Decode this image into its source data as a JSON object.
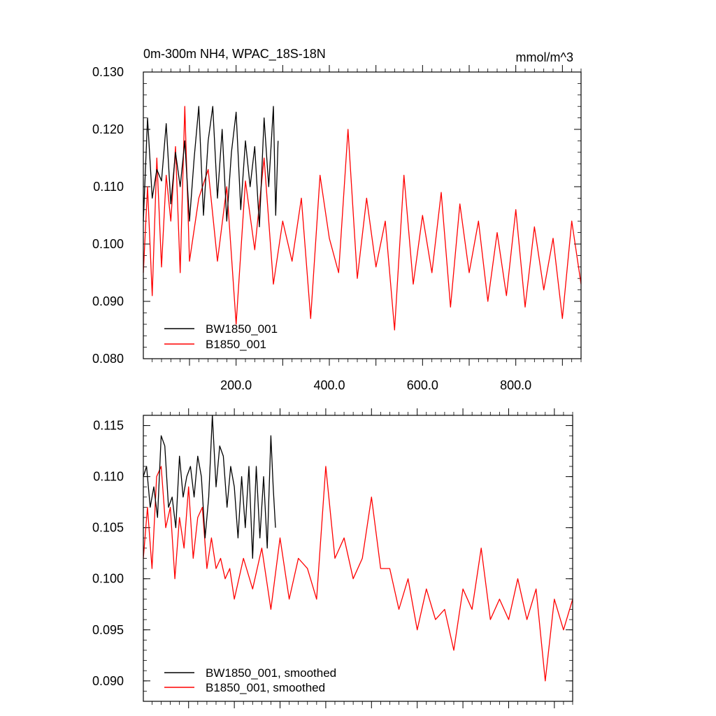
{
  "chart_data": [
    {
      "type": "line",
      "title": "0m-300m NH4, WPAC_18S-18N",
      "units": "mmol/m^3",
      "xlim": [
        1,
        940
      ],
      "ylim": [
        0.08,
        0.13
      ],
      "yticks": [
        "0.080",
        "0.090",
        "0.100",
        "0.110",
        "0.120",
        "0.130"
      ],
      "ytick_values": [
        0.08,
        0.09,
        0.1,
        0.11,
        0.12,
        0.13
      ],
      "xticks": [
        "200.0",
        "400.0",
        "600.0",
        "800.0"
      ],
      "xtick_values": [
        200,
        400,
        600,
        800
      ],
      "legend_position": "bottom-left",
      "series": [
        {
          "name": "BW1850_001",
          "color": "#000000",
          "x": [
            1,
            10,
            20,
            30,
            40,
            50,
            60,
            70,
            80,
            90,
            100,
            110,
            120,
            130,
            140,
            150,
            160,
            170,
            180,
            190,
            200,
            210,
            220,
            230,
            240,
            250,
            260,
            270,
            280,
            285,
            290
          ],
          "values": [
            0.104,
            0.122,
            0.108,
            0.113,
            0.111,
            0.121,
            0.107,
            0.116,
            0.11,
            0.118,
            0.104,
            0.115,
            0.124,
            0.105,
            0.118,
            0.124,
            0.108,
            0.12,
            0.104,
            0.116,
            0.123,
            0.106,
            0.118,
            0.11,
            0.117,
            0.103,
            0.122,
            0.11,
            0.124,
            0.105,
            0.118
          ]
        },
        {
          "name": "B1850_001",
          "color": "#ff0000",
          "x": [
            1,
            10,
            20,
            30,
            40,
            50,
            60,
            70,
            80,
            90,
            100,
            120,
            140,
            160,
            180,
            200,
            220,
            240,
            260,
            280,
            300,
            320,
            340,
            360,
            380,
            400,
            420,
            440,
            460,
            480,
            500,
            520,
            540,
            560,
            580,
            600,
            620,
            640,
            660,
            680,
            700,
            720,
            740,
            760,
            780,
            800,
            820,
            840,
            860,
            880,
            900,
            920,
            940
          ],
          "values": [
            0.095,
            0.11,
            0.091,
            0.115,
            0.096,
            0.112,
            0.104,
            0.117,
            0.095,
            0.124,
            0.097,
            0.108,
            0.113,
            0.097,
            0.11,
            0.086,
            0.111,
            0.099,
            0.115,
            0.093,
            0.104,
            0.097,
            0.108,
            0.087,
            0.112,
            0.101,
            0.095,
            0.12,
            0.094,
            0.108,
            0.096,
            0.104,
            0.085,
            0.112,
            0.093,
            0.105,
            0.095,
            0.109,
            0.089,
            0.107,
            0.095,
            0.104,
            0.09,
            0.102,
            0.091,
            0.106,
            0.089,
            0.103,
            0.092,
            0.101,
            0.087,
            0.104,
            0.093
          ]
        }
      ]
    },
    {
      "type": "line",
      "xlim": [
        1,
        940
      ],
      "ylim": [
        0.088,
        0.116
      ],
      "yticks": [
        "0.090",
        "0.095",
        "0.100",
        "0.105",
        "0.110",
        "0.115"
      ],
      "ytick_values": [
        0.09,
        0.095,
        0.1,
        0.105,
        0.11,
        0.115
      ],
      "legend_position": "bottom-left",
      "series": [
        {
          "name": "BW1850_001, smoothed",
          "color": "#000000",
          "x": [
            1,
            8,
            16,
            24,
            32,
            40,
            48,
            56,
            64,
            72,
            80,
            88,
            96,
            104,
            112,
            120,
            128,
            136,
            144,
            152,
            160,
            168,
            176,
            184,
            192,
            200,
            208,
            216,
            224,
            232,
            240,
            248,
            256,
            264,
            272,
            280,
            285,
            290
          ],
          "values": [
            0.11,
            0.111,
            0.107,
            0.109,
            0.106,
            0.114,
            0.113,
            0.107,
            0.108,
            0.105,
            0.112,
            0.108,
            0.11,
            0.111,
            0.108,
            0.112,
            0.11,
            0.104,
            0.108,
            0.116,
            0.109,
            0.113,
            0.112,
            0.107,
            0.111,
            0.109,
            0.104,
            0.11,
            0.105,
            0.111,
            0.102,
            0.111,
            0.104,
            0.11,
            0.103,
            0.114,
            0.109,
            0.105
          ]
        },
        {
          "name": "B1850_001, smoothed",
          "color": "#ff0000",
          "x": [
            1,
            10,
            20,
            30,
            40,
            50,
            60,
            70,
            80,
            90,
            100,
            110,
            120,
            130,
            140,
            150,
            160,
            170,
            180,
            190,
            200,
            220,
            240,
            260,
            280,
            300,
            320,
            340,
            360,
            380,
            400,
            420,
            440,
            460,
            480,
            500,
            520,
            540,
            560,
            580,
            600,
            620,
            640,
            660,
            680,
            700,
            720,
            740,
            760,
            780,
            800,
            820,
            840,
            860,
            880,
            900,
            920,
            940
          ],
          "values": [
            0.102,
            0.107,
            0.101,
            0.11,
            0.111,
            0.105,
            0.107,
            0.1,
            0.106,
            0.103,
            0.109,
            0.102,
            0.106,
            0.107,
            0.101,
            0.104,
            0.101,
            0.102,
            0.1,
            0.101,
            0.098,
            0.102,
            0.099,
            0.103,
            0.097,
            0.104,
            0.098,
            0.102,
            0.101,
            0.098,
            0.111,
            0.102,
            0.104,
            0.1,
            0.102,
            0.108,
            0.101,
            0.101,
            0.097,
            0.1,
            0.095,
            0.099,
            0.096,
            0.097,
            0.093,
            0.099,
            0.097,
            0.103,
            0.096,
            0.098,
            0.096,
            0.1,
            0.096,
            0.099,
            0.09,
            0.098,
            0.095,
            0.098
          ]
        }
      ]
    }
  ]
}
